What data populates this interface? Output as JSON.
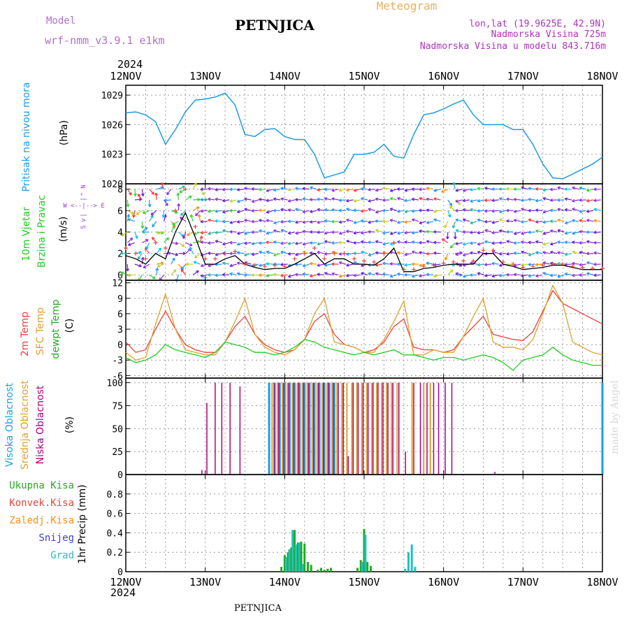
{
  "header": {
    "model_label": "Model",
    "model_name": "wrf-nmm_v3.9.1 e1km",
    "station": "PETNJICA",
    "title": "Meteogram",
    "lonlat": "lon,lat (19.9625E, 42.9N)",
    "elevation": "Nadmorska Visina 725m",
    "model_elevation": "Nadmorska Visina u modelu 843.716m",
    "year": "2024",
    "footer_station": "PETNJICA",
    "watermark": "made by Angel"
  },
  "colors": {
    "pressure": "#1e9be6",
    "temp2m": "#e8433e",
    "sfc": "#e0a030",
    "dewpt": "#22cc22",
    "high_cloud": "#1aa0e0",
    "mid_cloud": "#e0a030",
    "low_cloud": "#b0007a",
    "wind_speed": "#000000",
    "gust": "#e8433e",
    "total_precip": "#22aa22",
    "conv_precip": "#e8433e",
    "frozen_precip": "#ff8c1a",
    "snow": "#4040d0",
    "graupel": "#20c0c0"
  },
  "time_axis": {
    "labels": [
      "12NOV",
      "13NOV",
      "14NOV",
      "15NOV",
      "16NOV",
      "17NOV",
      "18NOV"
    ]
  },
  "panel_labels": {
    "pressure": [
      "Pritisak na nivou mora",
      "(hPa)"
    ],
    "wind": [
      "10m Vjetar",
      "Brzina i Pravac",
      "(m/s)"
    ],
    "compass": [
      "N",
      "^",
      "|",
      "W <--|--> E",
      "|",
      "v",
      "S"
    ],
    "temp": [
      "2m Temp",
      "SFC Temp",
      "dewpt Temp",
      "(C)"
    ],
    "cloud": [
      "Visoka Oblacnost",
      "Srednja Oblacnost",
      "Niska Oblacnost",
      "(%)"
    ],
    "precip_legend": [
      "Ukupna Kisa",
      "Konvek.Kisa",
      "Zaledj.Kisa",
      "Snijeg",
      "Grad"
    ],
    "precip_unit": "1hr Precip (mm)"
  },
  "chart_data": [
    {
      "type": "line",
      "title": "",
      "ylabel": "Pritisak na nivou mora (hPa)",
      "ylim": [
        1020,
        1030
      ],
      "yticks": [
        1020,
        1023,
        1026,
        1029
      ],
      "x_hours": [
        0,
        3,
        6,
        9,
        12,
        15,
        18,
        21,
        24,
        27,
        30,
        33,
        36,
        39,
        42,
        45,
        48,
        51,
        54,
        57,
        60,
        63,
        66,
        69,
        72,
        75,
        78,
        81,
        84,
        87,
        90,
        93,
        96,
        99,
        102,
        105,
        108,
        111,
        114,
        117,
        120,
        123,
        126,
        129,
        132,
        135,
        138,
        141,
        144
      ],
      "series": [
        {
          "values": [
            1027.2,
            1027.3,
            1027.0,
            1026.3,
            1024.0,
            1025.5,
            1027.3,
            1028.5,
            1028.6,
            1028.8,
            1029.2,
            1028.0,
            1025.0,
            1024.8,
            1025.5,
            1025.6,
            1024.8,
            1024.5,
            1024.5,
            1023.0,
            1020.6,
            1020.9,
            1021.2,
            1023.0,
            1023.0,
            1023.2,
            1024.0,
            1022.8,
            1022.6,
            1025.0,
            1027.0,
            1027.2,
            1027.6,
            1028.1,
            1028.5,
            1027.0,
            1026.0,
            1026.0,
            1026.0,
            1025.5,
            1025.5,
            1024.0,
            1022.0,
            1020.6,
            1020.5,
            1021.0,
            1021.5,
            1022.0,
            1022.7
          ]
        }
      ]
    },
    {
      "type": "line",
      "title": "",
      "ylabel": "10m Vjetar Brzina i Pravac (m/s)",
      "ylim": [
        -0.5,
        8.5
      ],
      "yticks": [
        0,
        2,
        4,
        6,
        8
      ],
      "x_hours": [
        0,
        3,
        6,
        9,
        12,
        15,
        18,
        21,
        24,
        27,
        30,
        33,
        36,
        39,
        42,
        45,
        48,
        51,
        54,
        57,
        60,
        63,
        66,
        69,
        72,
        75,
        78,
        81,
        84,
        87,
        90,
        93,
        96,
        99,
        102,
        105,
        108,
        111,
        114,
        117,
        120,
        123,
        126,
        129,
        132,
        135,
        138,
        141,
        144
      ],
      "series": [
        {
          "values": [
            1.8,
            1.5,
            1.0,
            2.0,
            1.5,
            4.0,
            5.8,
            3.5,
            1.0,
            1.0,
            1.5,
            1.8,
            1.0,
            0.7,
            0.5,
            0.6,
            0.6,
            1.0,
            1.5,
            2.0,
            1.0,
            1.5,
            1.5,
            1.0,
            1.0,
            0.9,
            1.5,
            2.5,
            0.3,
            0.3,
            0.6,
            0.7,
            0.9,
            1.0,
            1.0,
            1.0,
            2.0,
            2.0,
            1.0,
            0.8,
            0.5,
            0.6,
            0.7,
            0.9,
            0.9,
            0.7,
            0.5,
            0.5,
            0.5
          ]
        },
        {
          "values": [
            2.5,
            2.0,
            1.5,
            3.0,
            2.5,
            6.0,
            8.0,
            4.5,
            1.5,
            1.5,
            2.0,
            2.2,
            1.0,
            0.9,
            0.8,
            0.9,
            0.8,
            1.5,
            2.0,
            2.5,
            1.5,
            2.0,
            2.0,
            1.5,
            1.3,
            1.2,
            2.0,
            3.0,
            0.5,
            0.5,
            0.8,
            0.9,
            1.1,
            1.2,
            1.3,
            1.3,
            2.3,
            2.3,
            1.2,
            1.0,
            0.7,
            0.8,
            0.9,
            1.0,
            1.0,
            0.8,
            0.7,
            0.6,
            0.6
          ]
        }
      ]
    },
    {
      "type": "line",
      "title": "",
      "ylabel": "(C)",
      "ylim": [
        -6.5,
        12.5
      ],
      "yticks": [
        -6,
        -3,
        0,
        3,
        6,
        9,
        12
      ],
      "x_hours": [
        0,
        3,
        6,
        9,
        12,
        15,
        18,
        21,
        24,
        27,
        30,
        33,
        36,
        39,
        42,
        45,
        48,
        51,
        54,
        57,
        60,
        63,
        66,
        69,
        72,
        75,
        78,
        81,
        84,
        87,
        90,
        93,
        96,
        99,
        102,
        105,
        108,
        111,
        114,
        117,
        120,
        123,
        126,
        129,
        132,
        135,
        138,
        141,
        144
      ],
      "series": [
        {
          "name": "2m Temp",
          "values": [
            0.5,
            -1.5,
            -1.0,
            3.0,
            6.5,
            3.0,
            0.0,
            -1.0,
            -1.5,
            -1.5,
            0.5,
            3.5,
            5.5,
            2.0,
            0.0,
            -1.0,
            -1.5,
            -1.0,
            1.0,
            4.5,
            6.0,
            2.0,
            0.0,
            -0.5,
            -1.5,
            -1.0,
            0.5,
            3.5,
            5.0,
            -0.5,
            -1.0,
            -1.0,
            -1.5,
            -1.0,
            1.5,
            3.5,
            5.5,
            2.0,
            1.5,
            1.0,
            0.8,
            2.5,
            6.5,
            10.5,
            8.0,
            7.0,
            6.0,
            5.0,
            4.0
          ]
        },
        {
          "name": "SFC Temp",
          "values": [
            -1.5,
            -3.0,
            -2.5,
            4.0,
            9.8,
            3.0,
            -1.0,
            -1.5,
            -2.0,
            -2.0,
            0.5,
            4.5,
            9.0,
            2.0,
            -0.5,
            -1.5,
            -2.0,
            -1.0,
            1.0,
            6.0,
            9.0,
            0.5,
            0.0,
            -0.5,
            -1.5,
            -1.5,
            1.0,
            4.5,
            8.5,
            -2.0,
            -2.0,
            -1.0,
            -1.5,
            -1.5,
            1.5,
            5.5,
            9.0,
            0.5,
            -0.5,
            -0.5,
            -1.0,
            1.0,
            6.0,
            11.5,
            8.0,
            0.5,
            -0.5,
            -1.5,
            -2.0
          ]
        },
        {
          "name": "dewpt Temp",
          "values": [
            -2.5,
            -3.5,
            -3.0,
            -2.0,
            0.0,
            -1.0,
            -1.5,
            -2.0,
            -2.5,
            -1.5,
            0.5,
            0.0,
            -0.5,
            -1.5,
            -1.5,
            -2.0,
            -1.5,
            -0.5,
            1.0,
            0.5,
            -0.5,
            -1.0,
            -1.5,
            -2.0,
            -1.5,
            -2.0,
            -1.5,
            -1.0,
            -2.0,
            -2.0,
            -2.5,
            -3.0,
            -2.5,
            -2.5,
            -3.0,
            -2.5,
            -2.0,
            -2.5,
            -3.5,
            -5.0,
            -3.0,
            -2.5,
            -2.0,
            -0.5,
            -2.0,
            -3.0,
            -3.5,
            -4.0,
            -4.0
          ]
        }
      ]
    },
    {
      "type": "bar",
      "title": "",
      "ylabel": "(%)",
      "ylim": [
        0,
        105
      ],
      "yticks": [
        0,
        25,
        50,
        75,
        100
      ],
      "series": [
        {
          "name": "Visoka Oblacnost",
          "x_hours": [
            43.3,
            45.0,
            46.5,
            48.0,
            49.5,
            51.0,
            52.5,
            54.0,
            55.5,
            57.0,
            58.5,
            60.0,
            61.5,
            63.0,
            144
          ],
          "values": [
            100,
            100,
            100,
            100,
            100,
            100,
            100,
            100,
            100,
            100,
            100,
            100,
            100,
            100,
            100
          ]
        },
        {
          "name": "Srednja Oblacnost",
          "x_hours": [
            44.2,
            45.8,
            47.3,
            48.8,
            50.3,
            51.8,
            53.3,
            54.8,
            56.3,
            57.8,
            59.3,
            60.8,
            62.3,
            63.8,
            65.3,
            66.8,
            68.3,
            69.8,
            71.3,
            72.8,
            74.3,
            75.8,
            77.3,
            78.8,
            80.3,
            82.0,
            86.5,
            90.0,
            92.0
          ],
          "values": [
            100,
            100,
            100,
            100,
            100,
            100,
            100,
            100,
            100,
            100,
            100,
            100,
            100,
            100,
            100,
            100,
            100,
            100,
            100,
            100,
            100,
            100,
            100,
            100,
            100,
            100,
            100,
            100,
            100
          ]
        },
        {
          "name": "Niska Oblacnost",
          "x_hours": [
            23.0,
            24.5,
            27.0,
            29.0,
            31.5,
            34.5,
            44.8,
            46.2,
            47.7,
            49.2,
            50.7,
            52.2,
            53.7,
            55.2,
            56.7,
            58.2,
            59.7,
            61.2,
            62.7,
            64.2,
            65.7,
            67.2,
            68.7,
            70.2,
            71.7,
            73.2,
            74.7,
            76.2,
            77.7,
            79.2,
            80.7,
            82.5,
            84.5,
            87.0,
            89.0,
            91.0,
            93.0,
            94.5,
            96.5,
            98.5,
            111.5
          ],
          "values": [
            5,
            78,
            100,
            100,
            100,
            96,
            100,
            100,
            100,
            100,
            100,
            100,
            100,
            100,
            100,
            100,
            100,
            100,
            100,
            100,
            100,
            20,
            100,
            100,
            100,
            100,
            100,
            100,
            100,
            100,
            100,
            100,
            25,
            100,
            100,
            100,
            100,
            100,
            100,
            100,
            3
          ]
        }
      ]
    },
    {
      "type": "bar",
      "title": "",
      "ylabel": "1hr Precip (mm)",
      "ylim": [
        0,
        1.0
      ],
      "yticks": [
        0,
        0.2,
        0.4,
        0.6,
        0.8
      ],
      "series": [
        {
          "name": "Ukupna Kisa",
          "x_hours": [
            47,
            48,
            49,
            50,
            51,
            52,
            53,
            54,
            55,
            56,
            58,
            59,
            60,
            61,
            62,
            70,
            71,
            72,
            73,
            74
          ],
          "values": [
            0.05,
            0.17,
            0.2,
            0.25,
            0.43,
            0.3,
            0.31,
            0.29,
            0.1,
            0.07,
            0.02,
            0.04,
            0.02,
            0.03,
            0.04,
            0.04,
            0.12,
            0.44,
            0.1,
            0.06
          ]
        },
        {
          "name": "Konvek.Kisa",
          "x_hours": [],
          "values": []
        },
        {
          "name": "Zaledj.Kisa",
          "x_hours": [],
          "values": []
        },
        {
          "name": "Snijeg",
          "x_hours": [],
          "values": []
        },
        {
          "name": "Grad",
          "x_hours": [
            48.4,
            49.4,
            50.4,
            51.4,
            52.4,
            53.4,
            71.4,
            72.4,
            84.4,
            85.4,
            86.4,
            87.4
          ],
          "values": [
            0.15,
            0.23,
            0.43,
            0.28,
            0.3,
            0.08,
            0.1,
            0.38,
            0.03,
            0.2,
            0.28,
            0.05
          ]
        }
      ]
    }
  ]
}
